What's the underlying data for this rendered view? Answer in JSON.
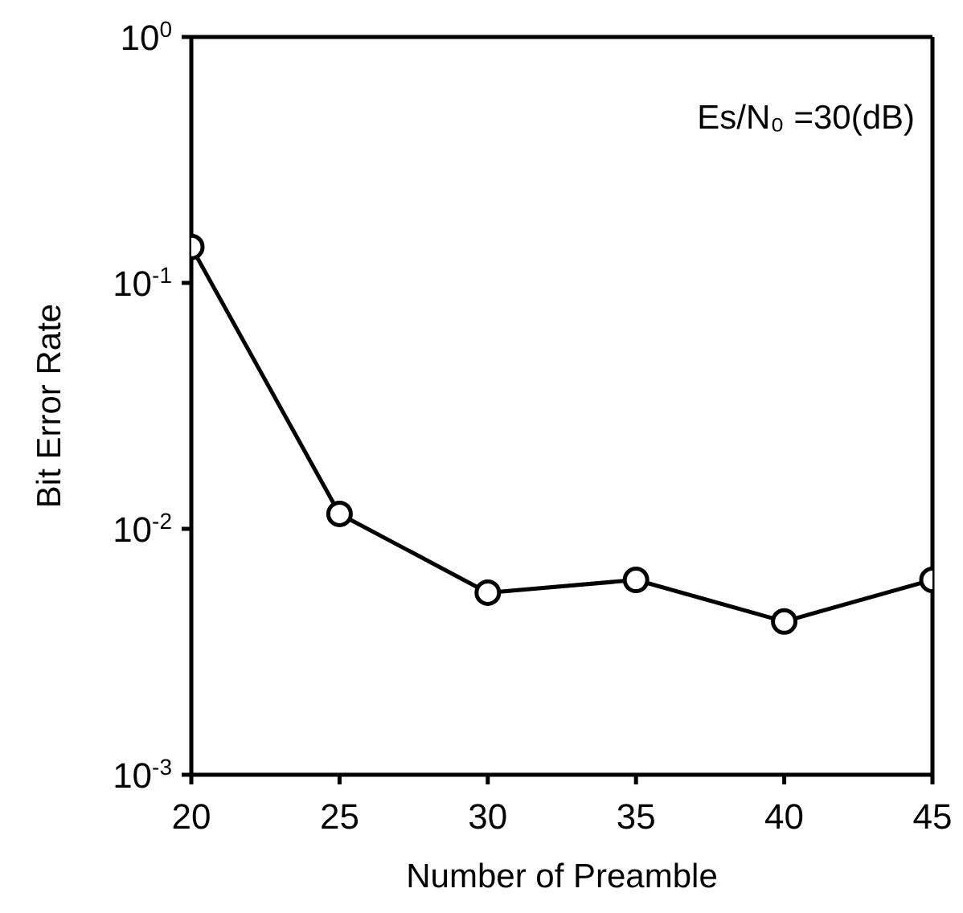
{
  "chart_data": {
    "type": "line",
    "xlabel": "Number of Preamble",
    "ylabel": "Bit Error Rate",
    "annotations": [
      "Es/N₀ =30(dB)"
    ],
    "x": [
      20,
      25,
      30,
      35,
      40,
      45
    ],
    "series": [
      {
        "color": "#000000",
        "values": [
          0.14,
          0.0115,
          0.0055,
          0.0062,
          0.0042,
          0.0062
        ]
      }
    ],
    "xlim": [
      20,
      45
    ],
    "xticks": [
      20,
      25,
      30,
      35,
      40,
      45
    ],
    "ylim": [
      0.001,
      1
    ],
    "yticks": [
      {
        "value": 1,
        "label": "10$^{0}$"
      },
      {
        "value": 0.1,
        "label": "10$^{-1}$"
      },
      {
        "value": 0.01,
        "label": "10$^{-2}$"
      },
      {
        "value": 0.001,
        "label": "10$^{-3}$"
      }
    ],
    "log": "y",
    "marker": "circle",
    "line_style": "solid"
  }
}
